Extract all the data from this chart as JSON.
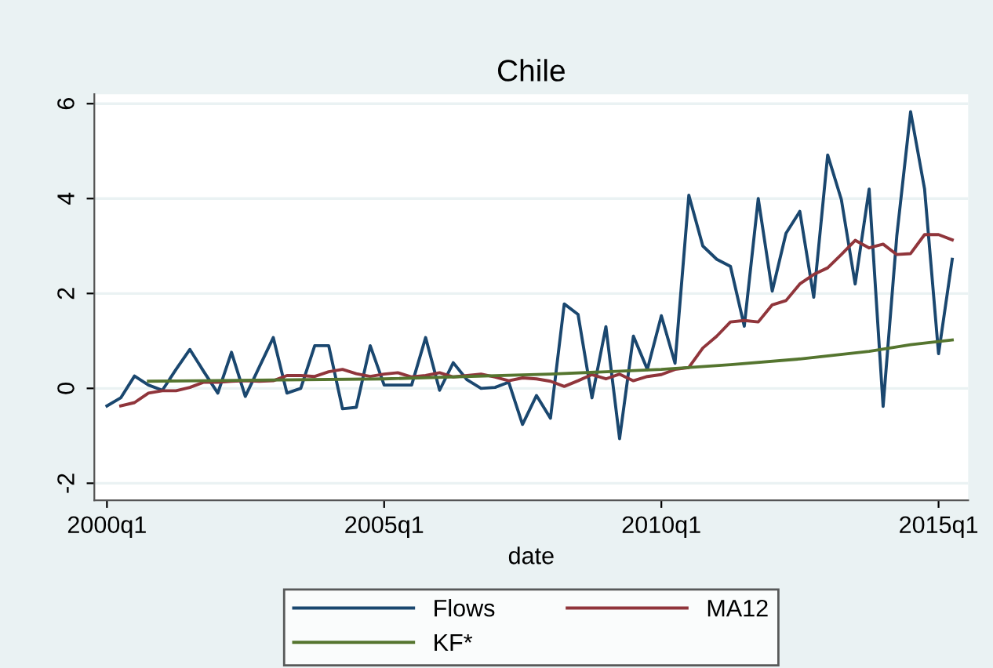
{
  "chart_data": {
    "type": "line",
    "title": "Chile",
    "xlabel": "date",
    "xlim": [
      "1999-10-10",
      "2015-07-15"
    ],
    "ylim": [
      -2.36,
      6.2
    ],
    "xticks": [
      {
        "value": "2000-01",
        "label": "2000q1"
      },
      {
        "value": "2005-01",
        "label": "2005q1"
      },
      {
        "value": "2010-01",
        "label": "2010q1"
      },
      {
        "value": "2015-01",
        "label": "2015q1"
      }
    ],
    "yticks": [
      -2,
      0,
      2,
      4,
      6
    ],
    "grid": "y",
    "legend": "bottom",
    "line_style": "solid",
    "series": [
      {
        "name": "Flows",
        "color": "#1a476f",
        "x": [
          "2000-01",
          "2000-04",
          "2000-07",
          "2000-10",
          "2001-01",
          "2001-04",
          "2001-07",
          "2001-10",
          "2002-01",
          "2002-04",
          "2002-07",
          "2002-10",
          "2003-01",
          "2003-04",
          "2003-07",
          "2003-10",
          "2004-01",
          "2004-04",
          "2004-07",
          "2004-10",
          "2005-01",
          "2005-04",
          "2005-07",
          "2005-10",
          "2006-01",
          "2006-04",
          "2006-07",
          "2006-10",
          "2007-01",
          "2007-04",
          "2007-07",
          "2007-10",
          "2008-01",
          "2008-04",
          "2008-07",
          "2008-10",
          "2009-01",
          "2009-04",
          "2009-07",
          "2009-10",
          "2010-01",
          "2010-04",
          "2010-07",
          "2010-10",
          "2011-01",
          "2011-04",
          "2011-07",
          "2011-10",
          "2012-01",
          "2012-04",
          "2012-07",
          "2012-10",
          "2013-01",
          "2013-04",
          "2013-07",
          "2013-10",
          "2014-01",
          "2014-04",
          "2014-07",
          "2014-10",
          "2015-01",
          "2015-04"
        ],
        "values": [
          -0.37,
          -0.2,
          0.26,
          0.07,
          -0.04,
          0.4,
          0.82,
          0.35,
          -0.1,
          0.76,
          -0.17,
          0.45,
          1.07,
          -0.1,
          0.0,
          0.9,
          0.9,
          -0.43,
          -0.4,
          0.9,
          0.07,
          0.07,
          0.07,
          1.07,
          -0.04,
          0.54,
          0.18,
          0.0,
          0.02,
          0.13,
          -0.76,
          -0.15,
          -0.63,
          1.78,
          1.56,
          -0.2,
          1.3,
          -1.06,
          1.1,
          0.4,
          1.53,
          0.53,
          4.07,
          3.0,
          2.72,
          2.57,
          1.31,
          4.0,
          2.05,
          3.27,
          3.73,
          1.92,
          4.92,
          3.98,
          2.2,
          4.2,
          -0.38,
          3.21,
          5.83,
          4.2,
          0.73,
          2.72
        ]
      },
      {
        "name": "MA12",
        "color": "#90353b",
        "x": [
          "2000-04",
          "2000-07",
          "2000-10",
          "2001-01",
          "2001-04",
          "2001-07",
          "2001-10",
          "2002-01",
          "2002-04",
          "2002-07",
          "2002-10",
          "2003-01",
          "2003-04",
          "2003-07",
          "2003-10",
          "2004-01",
          "2004-04",
          "2004-07",
          "2004-10",
          "2005-01",
          "2005-04",
          "2005-07",
          "2005-10",
          "2006-01",
          "2006-04",
          "2006-07",
          "2006-10",
          "2007-01",
          "2007-04",
          "2007-07",
          "2007-10",
          "2008-01",
          "2008-04",
          "2008-07",
          "2008-10",
          "2009-01",
          "2009-04",
          "2009-07",
          "2009-10",
          "2010-01",
          "2010-04",
          "2010-07",
          "2010-10",
          "2011-01",
          "2011-04",
          "2011-07",
          "2011-10",
          "2012-01",
          "2012-04",
          "2012-07",
          "2012-10",
          "2013-01",
          "2013-04",
          "2013-07",
          "2013-10",
          "2014-01",
          "2014-04",
          "2014-07",
          "2014-10",
          "2015-01",
          "2015-04"
        ],
        "values": [
          -0.37,
          -0.3,
          -0.1,
          -0.05,
          -0.05,
          0.02,
          0.13,
          0.13,
          0.15,
          0.16,
          0.15,
          0.16,
          0.27,
          0.27,
          0.25,
          0.35,
          0.4,
          0.31,
          0.25,
          0.3,
          0.33,
          0.24,
          0.27,
          0.33,
          0.24,
          0.27,
          0.3,
          0.24,
          0.16,
          0.22,
          0.2,
          0.15,
          0.04,
          0.16,
          0.29,
          0.2,
          0.3,
          0.16,
          0.25,
          0.29,
          0.4,
          0.44,
          0.85,
          1.1,
          1.4,
          1.43,
          1.4,
          1.76,
          1.85,
          2.2,
          2.4,
          2.54,
          2.82,
          3.12,
          2.96,
          3.04,
          2.82,
          2.84,
          3.24,
          3.24,
          3.13
        ]
      },
      {
        "name": "KF*",
        "color": "#55752f",
        "x": [
          "2000-10",
          "2005-01",
          "2008-01",
          "2010-01",
          "2011-04",
          "2012-07",
          "2013-10",
          "2014-07",
          "2015-04"
        ],
        "values": [
          0.15,
          0.2,
          0.3,
          0.4,
          0.5,
          0.62,
          0.78,
          0.92,
          1.02
        ]
      }
    ]
  }
}
